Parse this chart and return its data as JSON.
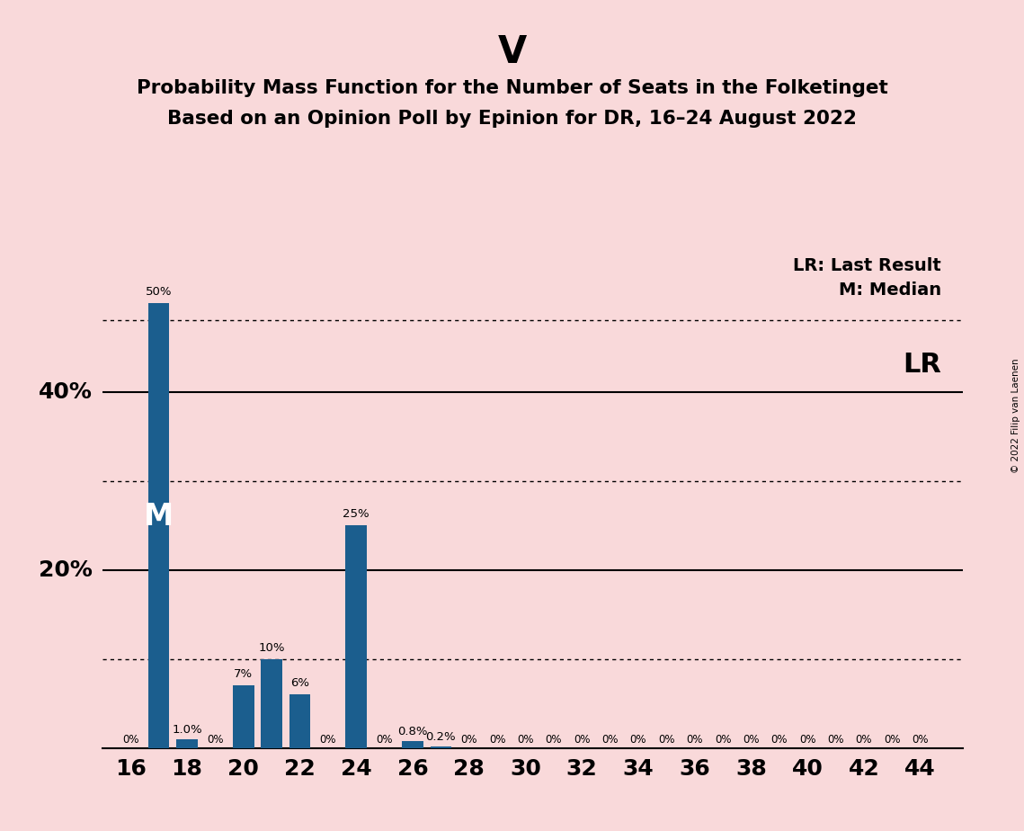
{
  "title": "V",
  "subtitle1": "Probability Mass Function for the Number of Seats in the Folketinget",
  "subtitle2": "Based on an Opinion Poll by Epinion for DR, 16–24 August 2022",
  "background_color": "#F9D9DA",
  "bar_color": "#1B5E8E",
  "seats": [
    16,
    17,
    18,
    19,
    20,
    21,
    22,
    23,
    24,
    25,
    26,
    27,
    28,
    29,
    30,
    31,
    32,
    33,
    34,
    35,
    36,
    37,
    38,
    39,
    40,
    41,
    42,
    43,
    44
  ],
  "probabilities": [
    0.0,
    50.0,
    1.0,
    0.0,
    7.0,
    10.0,
    6.0,
    0.0,
    25.0,
    0.0,
    0.8,
    0.2,
    0.0,
    0.0,
    0.0,
    0.0,
    0.0,
    0.0,
    0.0,
    0.0,
    0.0,
    0.0,
    0.0,
    0.0,
    0.0,
    0.0,
    0.0,
    0.0,
    0.0
  ],
  "bar_labels": [
    "0%",
    "50%",
    "1.0%",
    "0%",
    "7%",
    "10%",
    "6%",
    "0%",
    "25%",
    "0%",
    "0.8%",
    "0.2%",
    "0%",
    "0%",
    "0%",
    "0%",
    "0%",
    "0%",
    "0%",
    "0%",
    "0%",
    "0%",
    "0%",
    "0%",
    "0%",
    "0%",
    "0%",
    "0%",
    "0%"
  ],
  "xlim": [
    15.0,
    45.5
  ],
  "ylim": [
    0,
    56
  ],
  "xticks": [
    16,
    18,
    20,
    22,
    24,
    26,
    28,
    30,
    32,
    34,
    36,
    38,
    40,
    42,
    44
  ],
  "hlines_dotted": [
    10.0,
    30.0,
    48.0
  ],
  "hlines_solid": [
    20.0,
    40.0
  ],
  "lr_x": 24,
  "lr_line_y": 48.0,
  "lr_label": "LR",
  "median_bar_x": 17,
  "median_label": "M",
  "legend_lr": "LR: Last Result",
  "legend_m": "M: Median",
  "copyright": "© 2022 Filip van Laenen",
  "bar_width": 0.75
}
